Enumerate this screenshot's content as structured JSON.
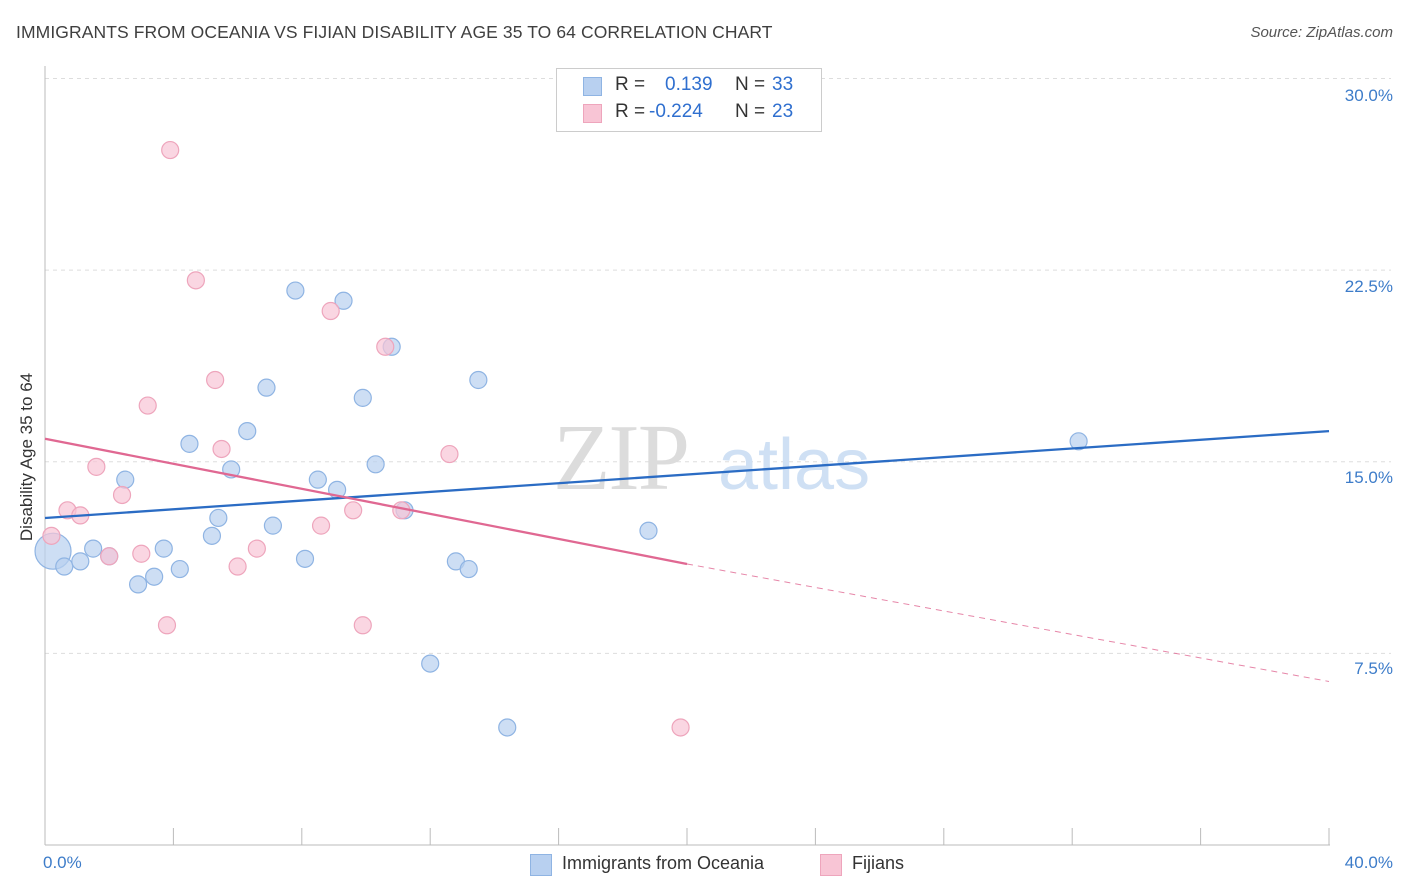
{
  "title": "IMMIGRANTS FROM OCEANIA VS FIJIAN DISABILITY AGE 35 TO 64 CORRELATION CHART",
  "source": "Source: ZipAtlas.com",
  "watermark": {
    "zip": "ZIP",
    "atlas": "atlas"
  },
  "stats": [
    {
      "r_label": "R =",
      "r_value": "0.139",
      "n_label": "N =",
      "n_value": "33"
    },
    {
      "r_label": "R =",
      "r_value": "-0.224",
      "n_label": "N =",
      "n_value": "23"
    }
  ],
  "legend": [
    "Immigrants from Oceania",
    "Fijians"
  ],
  "x_tick_labels": {
    "min": "0.0%",
    "max": "40.0%"
  },
  "y_tick_labels": [
    "7.5%",
    "15.0%",
    "22.5%",
    "30.0%"
  ],
  "colors": {
    "blue_fill": "#b8d0f0",
    "blue_stroke": "#8fb4e3",
    "blue_line": "#2b6cc4",
    "pink_fill": "#f8c5d5",
    "pink_stroke": "#eea5bc",
    "pink_line": "#e06892",
    "axis_text": "#3d7cc9",
    "grid": "#dddddd"
  },
  "chart_data": {
    "type": "scatter",
    "title": "IMMIGRANTS FROM OCEANIA VS FIJIAN DISABILITY AGE 35 TO 64 CORRELATION CHART",
    "xlabel": "",
    "ylabel": "Disability Age 35 to 64",
    "xlim": [
      0,
      40
    ],
    "ylim": [
      0,
      31
    ],
    "y_ticks": [
      7.5,
      15.0,
      22.5,
      30.0
    ],
    "grid": true,
    "legend_position": "bottom",
    "series": [
      {
        "name": "Immigrants from Oceania",
        "color": "#b8d0f0",
        "r": 0.139,
        "n": 33,
        "points": [
          [
            0.25,
            11.5
          ],
          [
            0.6,
            10.9
          ],
          [
            1.1,
            11.1
          ],
          [
            1.5,
            11.6
          ],
          [
            2.0,
            11.3
          ],
          [
            2.5,
            14.3
          ],
          [
            2.9,
            10.2
          ],
          [
            3.4,
            10.5
          ],
          [
            3.7,
            11.6
          ],
          [
            4.2,
            10.8
          ],
          [
            4.5,
            15.7
          ],
          [
            5.2,
            12.1
          ],
          [
            5.4,
            12.8
          ],
          [
            5.8,
            14.7
          ],
          [
            6.3,
            16.2
          ],
          [
            6.9,
            17.9
          ],
          [
            7.1,
            12.5
          ],
          [
            7.8,
            21.7
          ],
          [
            8.1,
            11.2
          ],
          [
            8.5,
            14.3
          ],
          [
            9.1,
            13.9
          ],
          [
            9.3,
            21.3
          ],
          [
            9.9,
            17.5
          ],
          [
            10.3,
            14.9
          ],
          [
            10.8,
            19.5
          ],
          [
            11.2,
            13.1
          ],
          [
            12.0,
            7.1
          ],
          [
            12.8,
            11.1
          ],
          [
            13.2,
            10.8
          ],
          [
            13.5,
            18.2
          ],
          [
            14.4,
            4.6
          ],
          [
            18.8,
            12.3
          ],
          [
            32.2,
            15.8
          ]
        ]
      },
      {
        "name": "Fijians",
        "color": "#f8c5d5",
        "r": -0.224,
        "n": 23,
        "points": [
          [
            0.2,
            12.1
          ],
          [
            0.7,
            13.1
          ],
          [
            1.1,
            12.9
          ],
          [
            1.6,
            14.8
          ],
          [
            2.0,
            11.3
          ],
          [
            2.4,
            13.7
          ],
          [
            3.0,
            11.4
          ],
          [
            3.2,
            17.2
          ],
          [
            3.8,
            8.6
          ],
          [
            3.9,
            27.2
          ],
          [
            4.7,
            22.1
          ],
          [
            5.3,
            18.2
          ],
          [
            5.5,
            15.5
          ],
          [
            6.0,
            10.9
          ],
          [
            6.6,
            11.6
          ],
          [
            8.6,
            12.5
          ],
          [
            8.9,
            20.9
          ],
          [
            9.6,
            13.1
          ],
          [
            9.9,
            8.6
          ],
          [
            10.6,
            19.5
          ],
          [
            11.1,
            13.1
          ],
          [
            12.6,
            15.3
          ],
          [
            19.8,
            4.6
          ]
        ]
      }
    ],
    "trend_lines": [
      {
        "series": "Immigrants from Oceania",
        "x": [
          0,
          40
        ],
        "y": [
          12.8,
          16.2
        ],
        "style": "solid"
      },
      {
        "series": "Fijians",
        "x": [
          0,
          20
        ],
        "y": [
          15.9,
          11.0
        ],
        "style": "solid"
      },
      {
        "series": "Fijians",
        "x": [
          20,
          40
        ],
        "y": [
          11.0,
          6.4
        ],
        "style": "dashed"
      }
    ]
  }
}
